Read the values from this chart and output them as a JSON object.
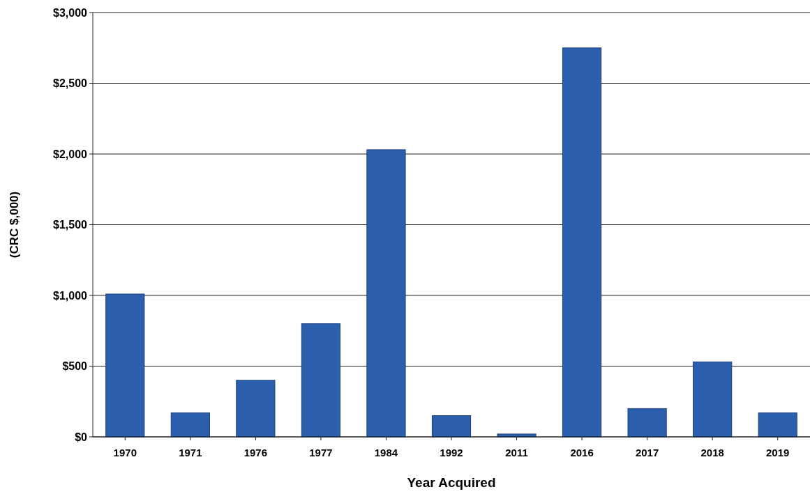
{
  "chart_data": {
    "type": "bar",
    "xlabel": "Year Acquired",
    "ylabel": "(CRC $,000)",
    "categories": [
      "1970",
      "1971",
      "1976",
      "1977",
      "1984",
      "1992",
      "2011",
      "2016",
      "2017",
      "2018",
      "2019"
    ],
    "values": [
      1010,
      170,
      400,
      800,
      2030,
      150,
      20,
      2750,
      200,
      530,
      170
    ],
    "color": "#2b5fae",
    "ylim": [
      0,
      3000
    ],
    "yticks": [
      {
        "value": 0,
        "label": "$0"
      },
      {
        "value": 500,
        "label": "$500"
      },
      {
        "value": 1000,
        "label": "$1,000"
      },
      {
        "value": 1500,
        "label": "$1,500"
      },
      {
        "value": 2000,
        "label": "$2,000"
      },
      {
        "value": 2500,
        "label": "$2,500"
      },
      {
        "value": 3000,
        "label": "$3,000"
      }
    ],
    "grid": "y"
  }
}
